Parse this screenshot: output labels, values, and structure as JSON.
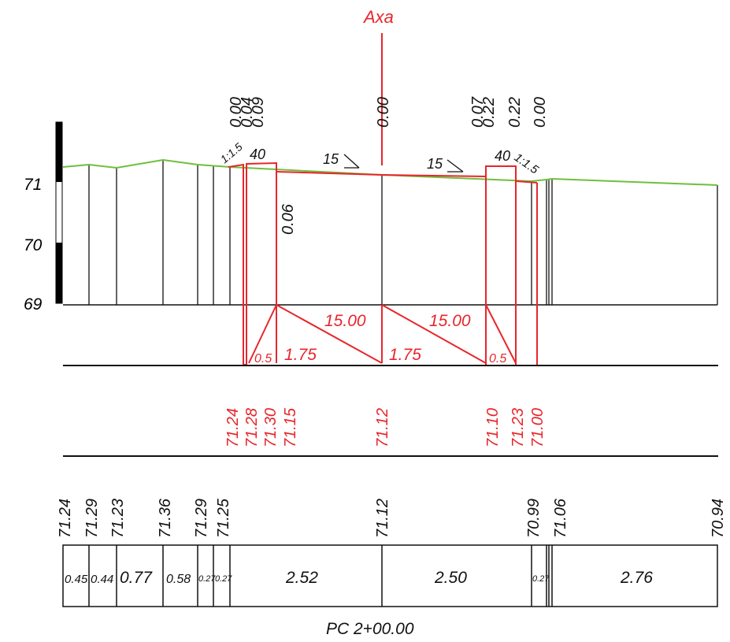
{
  "axis_label": "Axa",
  "elevation_labels": [
    "71",
    "70",
    "69"
  ],
  "top_offsets": {
    "left": [
      "0.00",
      "0.04",
      "0.09"
    ],
    "center": "0.00",
    "right": [
      "0.07",
      "0.22",
      "0.22",
      "0.00"
    ]
  },
  "slope_labels": {
    "left_ditch": "1:1.5",
    "left_shoulder": "40",
    "left_lane": "15",
    "right_lane": "15",
    "right_shoulder": "40",
    "right_ditch": "1:1.5"
  },
  "depth_label": "0.06",
  "template_widths": {
    "left_lane": "15.00",
    "right_lane": "15.00",
    "left_shoulder": "0.5",
    "right_shoulder": "0.5",
    "left_half": "1.75",
    "right_half": "1.75"
  },
  "design_elevations": {
    "left": [
      "71.24",
      "71.28",
      "71.30",
      "71.15"
    ],
    "center": "71.12",
    "right": [
      "71.10",
      "71.23",
      "71.00"
    ]
  },
  "ground_elevations": [
    "71.24",
    "71.29",
    "71.23",
    "71.36",
    "71.29",
    "71.25",
    "71.12",
    "70.99",
    "71.06",
    "70.94"
  ],
  "distances": [
    "0.45",
    "0.44",
    "0.77",
    "0.58",
    "0.27",
    "0.27",
    "2.52",
    "2.50",
    "0.27",
    "2.76"
  ],
  "station_label": "PC 2+00.00",
  "colors": {
    "design": "#e8262b",
    "ground": "#6fbf3e",
    "ink": "#111111"
  }
}
